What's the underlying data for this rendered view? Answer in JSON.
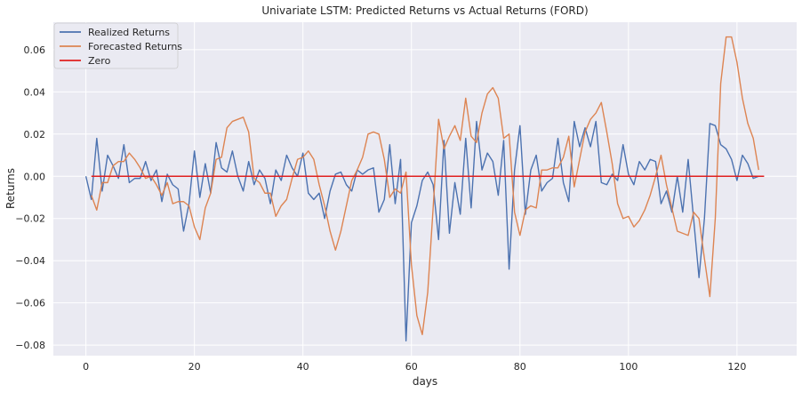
{
  "chart_data": {
    "type": "line",
    "title": "Univariate LSTM: Predicted Returns vs Actual Returns (FORD)",
    "xlabel": "days",
    "ylabel": "Returns",
    "xlim": [
      -6,
      131
    ],
    "ylim": [
      -0.085,
      0.073
    ],
    "xticks": [
      0,
      20,
      40,
      60,
      80,
      100,
      120
    ],
    "yticks": [
      -0.08,
      -0.06,
      -0.04,
      -0.02,
      0.0,
      0.02,
      0.04,
      0.06
    ],
    "xtick_labels": [
      "0",
      "20",
      "40",
      "60",
      "80",
      "100",
      "120"
    ],
    "ytick_labels": [
      "−0.08",
      "−0.06",
      "−0.04",
      "−0.02",
      "0.00",
      "0.02",
      "0.04",
      "0.06"
    ],
    "grid": true,
    "legend_position": "top-left",
    "background": "#eaeaf2",
    "series": [
      {
        "name": "Realized Returns",
        "color": "#4c72b0",
        "x_start": 0,
        "values": [
          0.0,
          -0.011,
          0.018,
          -0.007,
          0.01,
          0.005,
          -0.001,
          0.015,
          -0.003,
          -0.001,
          -0.001,
          0.007,
          -0.002,
          0.003,
          -0.012,
          0.001,
          -0.004,
          -0.006,
          -0.026,
          -0.013,
          0.012,
          -0.01,
          0.006,
          -0.008,
          0.016,
          0.004,
          0.002,
          0.012,
          0.0,
          -0.007,
          0.007,
          -0.004,
          0.003,
          -0.001,
          -0.013,
          0.003,
          -0.002,
          0.01,
          0.004,
          0.0,
          0.011,
          -0.008,
          -0.011,
          -0.008,
          -0.02,
          -0.007,
          0.001,
          0.002,
          -0.004,
          -0.007,
          0.003,
          0.001,
          0.003,
          0.004,
          -0.017,
          -0.011,
          0.015,
          -0.013,
          0.008,
          -0.078,
          -0.022,
          -0.014,
          -0.002,
          0.002,
          -0.004,
          -0.03,
          0.017,
          -0.027,
          -0.003,
          -0.018,
          0.018,
          -0.015,
          0.026,
          0.003,
          0.011,
          0.007,
          -0.009,
          0.017,
          -0.044,
          0.003,
          0.024,
          -0.018,
          0.003,
          0.01,
          -0.007,
          -0.003,
          -0.001,
          0.018,
          -0.003,
          -0.012,
          0.026,
          0.014,
          0.023,
          0.014,
          0.026,
          -0.003,
          -0.004,
          0.001,
          -0.002,
          0.015,
          0.001,
          -0.004,
          0.007,
          0.003,
          0.008,
          0.007,
          -0.013,
          -0.007,
          -0.017,
          0.0,
          -0.017,
          0.008,
          -0.02,
          -0.048,
          -0.02,
          0.025,
          0.024,
          0.015,
          0.013,
          0.008,
          -0.002,
          0.01,
          0.006,
          -0.001,
          0.0
        ]
      },
      {
        "name": "Forecasted Returns",
        "color": "#dd8452",
        "x_start": 1,
        "values": [
          -0.009,
          -0.016,
          -0.003,
          -0.003,
          0.005,
          0.007,
          0.007,
          0.011,
          0.008,
          0.004,
          -0.001,
          0.0,
          -0.004,
          -0.009,
          -0.003,
          -0.013,
          -0.012,
          -0.012,
          -0.014,
          -0.024,
          -0.03,
          -0.015,
          -0.008,
          0.008,
          0.009,
          0.023,
          0.026,
          0.027,
          0.028,
          0.021,
          -0.001,
          -0.003,
          -0.008,
          -0.008,
          -0.019,
          -0.014,
          -0.011,
          -0.001,
          0.008,
          0.009,
          0.012,
          0.008,
          -0.004,
          -0.014,
          -0.026,
          -0.035,
          -0.026,
          -0.014,
          -0.002,
          0.003,
          0.009,
          0.02,
          0.021,
          0.02,
          0.008,
          -0.01,
          -0.006,
          -0.008,
          0.002,
          -0.042,
          -0.066,
          -0.075,
          -0.055,
          -0.015,
          0.027,
          0.013,
          0.019,
          0.024,
          0.017,
          0.037,
          0.019,
          0.016,
          0.03,
          0.039,
          0.042,
          0.037,
          0.018,
          0.02,
          -0.017,
          -0.028,
          -0.016,
          -0.014,
          -0.015,
          0.003,
          0.003,
          0.004,
          0.004,
          0.009,
          0.019,
          -0.005,
          0.008,
          0.021,
          0.027,
          0.03,
          0.035,
          0.021,
          0.006,
          -0.013,
          -0.02,
          -0.019,
          -0.024,
          -0.021,
          -0.016,
          -0.009,
          0.0,
          0.01,
          -0.004,
          -0.015,
          -0.026,
          -0.027,
          -0.028,
          -0.017,
          -0.02,
          -0.039,
          -0.057,
          -0.02,
          0.044,
          0.066,
          0.066,
          0.054,
          0.037,
          0.025,
          0.018,
          0.003
        ]
      },
      {
        "name": "Zero",
        "color": "#e02020",
        "x": [
          1,
          125
        ],
        "y": [
          0,
          0
        ]
      }
    ]
  }
}
